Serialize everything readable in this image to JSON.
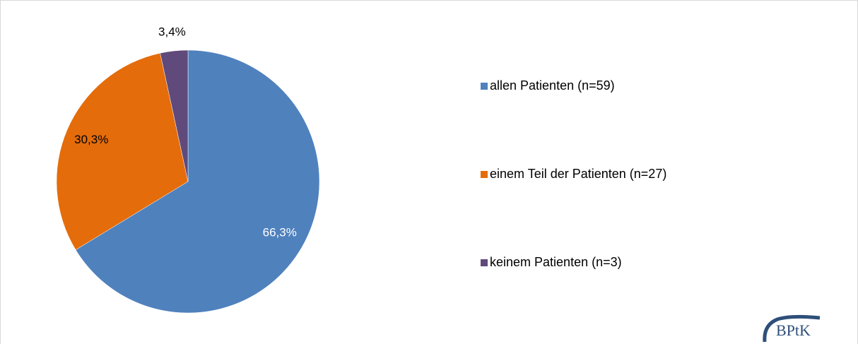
{
  "chart_data": {
    "type": "pie",
    "categories": [
      "allen Patienten (n=59)",
      "einem Teil der Patienten (n=27)",
      "keinem Patienten (n=3)"
    ],
    "values": [
      66.3,
      30.3,
      3.4
    ],
    "value_labels": [
      "66,3%",
      "30,3%",
      "3,4%"
    ],
    "colors": [
      "#4f81bd",
      "#e46c0a",
      "#604a7b"
    ],
    "value_label_colors": [
      "#ffffff",
      "#000000",
      "#000000"
    ],
    "legend": "right"
  },
  "logo": "BPtK"
}
